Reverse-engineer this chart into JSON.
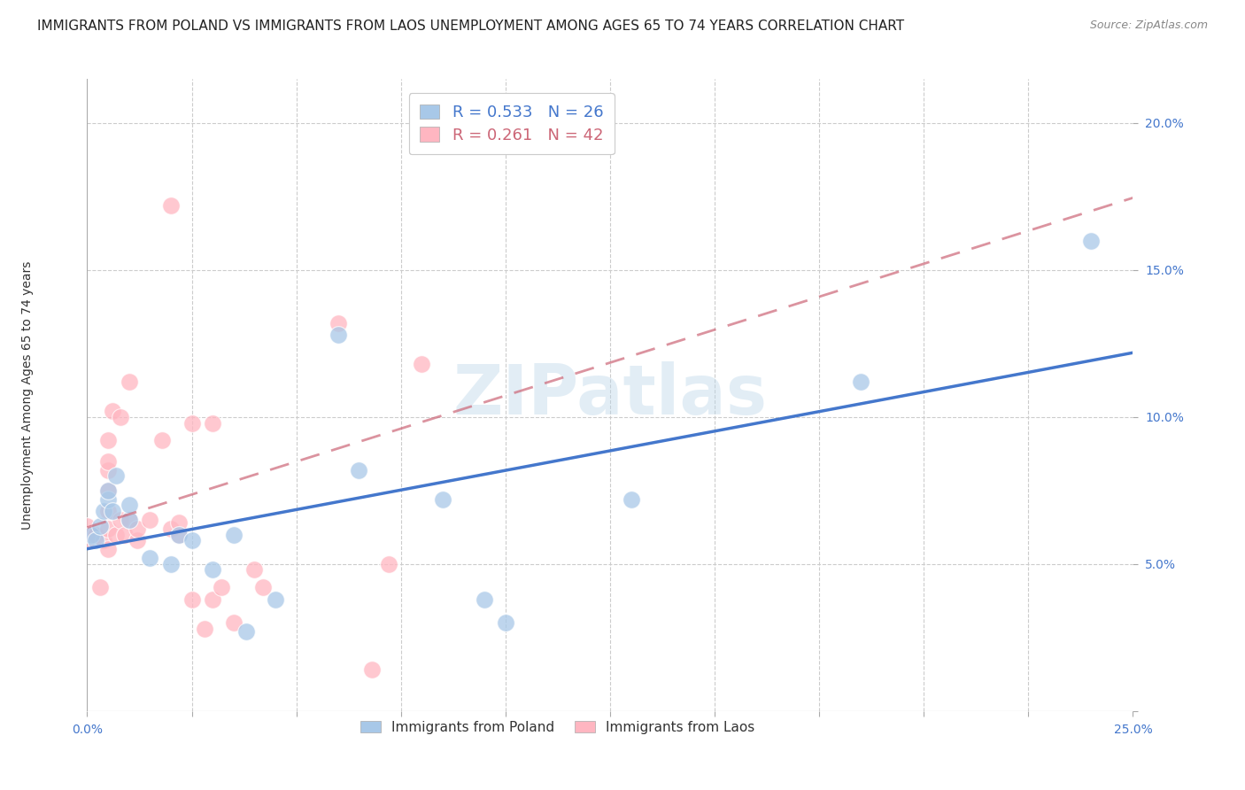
{
  "title": "IMMIGRANTS FROM POLAND VS IMMIGRANTS FROM LAOS UNEMPLOYMENT AMONG AGES 65 TO 74 YEARS CORRELATION CHART",
  "source": "Source: ZipAtlas.com",
  "ylabel": "Unemployment Among Ages 65 to 74 years",
  "xlim": [
    0.0,
    0.25
  ],
  "ylim": [
    0.0,
    0.215
  ],
  "xticks": [
    0.0,
    0.025,
    0.05,
    0.075,
    0.1,
    0.125,
    0.15,
    0.175,
    0.2,
    0.225,
    0.25
  ],
  "yticks": [
    0.0,
    0.05,
    0.1,
    0.15,
    0.2
  ],
  "poland_color": "#a8c8e8",
  "laos_color": "#ffb6c1",
  "poland_R": 0.533,
  "poland_N": 26,
  "laos_R": 0.261,
  "laos_N": 42,
  "poland_line_color": "#4477cc",
  "laos_line_color": "#cc6677",
  "poland_x": [
    0.001,
    0.002,
    0.003,
    0.004,
    0.005,
    0.005,
    0.006,
    0.007,
    0.01,
    0.01,
    0.015,
    0.02,
    0.022,
    0.025,
    0.03,
    0.035,
    0.038,
    0.045,
    0.06,
    0.065,
    0.085,
    0.095,
    0.1,
    0.13,
    0.185,
    0.24
  ],
  "poland_y": [
    0.06,
    0.058,
    0.063,
    0.068,
    0.072,
    0.075,
    0.068,
    0.08,
    0.065,
    0.07,
    0.052,
    0.05,
    0.06,
    0.058,
    0.048,
    0.06,
    0.027,
    0.038,
    0.128,
    0.082,
    0.072,
    0.038,
    0.03,
    0.072,
    0.112,
    0.16
  ],
  "laos_x": [
    0.0,
    0.0,
    0.001,
    0.002,
    0.003,
    0.004,
    0.005,
    0.005,
    0.005,
    0.005,
    0.005,
    0.005,
    0.005,
    0.006,
    0.007,
    0.008,
    0.008,
    0.009,
    0.01,
    0.01,
    0.012,
    0.012,
    0.015,
    0.018,
    0.02,
    0.02,
    0.022,
    0.022,
    0.025,
    0.025,
    0.028,
    0.03,
    0.03,
    0.032,
    0.035,
    0.04,
    0.042,
    0.06,
    0.068,
    0.072,
    0.08,
    0.11
  ],
  "laos_y": [
    0.058,
    0.063,
    0.06,
    0.06,
    0.042,
    0.058,
    0.055,
    0.062,
    0.068,
    0.075,
    0.082,
    0.085,
    0.092,
    0.102,
    0.06,
    0.065,
    0.1,
    0.06,
    0.065,
    0.112,
    0.058,
    0.062,
    0.065,
    0.092,
    0.062,
    0.172,
    0.06,
    0.064,
    0.038,
    0.098,
    0.028,
    0.038,
    0.098,
    0.042,
    0.03,
    0.048,
    0.042,
    0.132,
    0.014,
    0.05,
    0.118,
    0.2
  ],
  "background_color": "#ffffff",
  "grid_color": "#cccccc",
  "title_fontsize": 11,
  "axis_label_fontsize": 10,
  "tick_fontsize": 10,
  "legend_fontsize": 12,
  "watermark_color": "#b8d4e8",
  "watermark_alpha": 0.4
}
